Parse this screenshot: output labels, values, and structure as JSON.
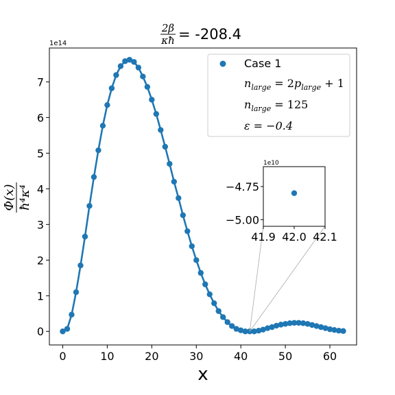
{
  "chart_data": {
    "type": "scatter",
    "title_fraction_num": "2β",
    "title_fraction_den": "κħ",
    "title_value": "= -208.4",
    "xlabel": "x",
    "ylabel_num": "Φ(x)",
    "ylabel_den": "ħ⁴κ⁴",
    "y_exponent": "1e14",
    "xlim": [
      -3,
      66
    ],
    "ylim": [
      -0.38,
      7.95
    ],
    "xticks": [
      0,
      10,
      20,
      30,
      40,
      50,
      60
    ],
    "yticks": [
      0,
      1,
      2,
      3,
      4,
      5,
      6,
      7
    ],
    "grid": false,
    "legend_position": "upper right",
    "legend": [
      {
        "type": "marker",
        "text": "Case 1"
      },
      {
        "type": "text",
        "text": "n_large = 2p_large + 1"
      },
      {
        "type": "text",
        "text": "n_large = 125"
      },
      {
        "type": "text",
        "text": "ε = −0.4"
      }
    ],
    "series": [
      {
        "name": "Case 1",
        "color": "#1f77b4",
        "x": [
          0,
          1,
          2,
          3,
          4,
          5,
          6,
          7,
          8,
          9,
          10,
          11,
          12,
          13,
          14,
          15,
          16,
          17,
          18,
          19,
          20,
          21,
          22,
          23,
          24,
          25,
          26,
          27,
          28,
          29,
          30,
          31,
          32,
          33,
          34,
          35,
          36,
          37,
          38,
          39,
          40,
          41,
          42,
          43,
          44,
          45,
          46,
          47,
          48,
          49,
          50,
          51,
          52,
          53,
          54,
          55,
          56,
          57,
          58,
          59,
          60,
          61,
          62,
          63
        ],
        "y": [
          0.0,
          0.07,
          0.47,
          1.1,
          1.85,
          2.66,
          3.52,
          4.33,
          5.08,
          5.77,
          6.35,
          6.82,
          7.19,
          7.44,
          7.58,
          7.62,
          7.56,
          7.4,
          7.15,
          6.86,
          6.5,
          6.1,
          5.65,
          5.18,
          4.7,
          4.2,
          3.74,
          3.26,
          2.81,
          2.39,
          2.0,
          1.64,
          1.32,
          1.04,
          0.79,
          0.57,
          0.4,
          0.26,
          0.15,
          0.07,
          0.03,
          0.0,
          0.0,
          0.0,
          0.02,
          0.05,
          0.09,
          0.12,
          0.16,
          0.19,
          0.21,
          0.23,
          0.24,
          0.24,
          0.23,
          0.21,
          0.18,
          0.15,
          0.12,
          0.09,
          0.06,
          0.04,
          0.02,
          0.01
        ]
      }
    ],
    "inset": {
      "exponent": "1e10",
      "xlim": [
        41.9,
        42.1
      ],
      "ylim": [
        -5.05,
        -4.6
      ],
      "xticks": [
        "41.9",
        "42.0",
        "42.1"
      ],
      "yticks": [
        "−4.75",
        "−5.00"
      ],
      "ytick_values": [
        -4.75,
        -5.0
      ],
      "point": {
        "x": 42.0,
        "y": -4.8
      }
    }
  }
}
